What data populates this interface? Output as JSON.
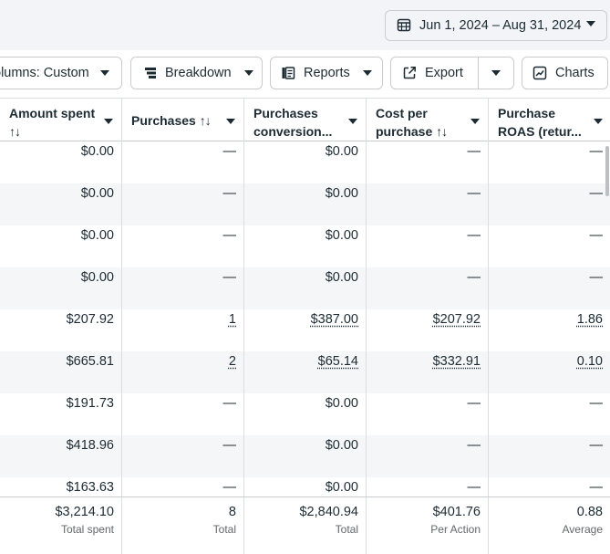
{
  "date_range": {
    "label": "Jun 1, 2024 – Aug 31, 2024"
  },
  "toolbar": {
    "columns_label": "olumns: Custom",
    "breakdown_label": "Breakdown",
    "reports_label": "Reports",
    "export_label": "Export",
    "charts_label": "Charts"
  },
  "table": {
    "columns": [
      {
        "title": "Amount spent",
        "sort": "↑↓"
      },
      {
        "title": "Purchases",
        "sort": "↑↓"
      },
      {
        "title": "Purchases",
        "title2": "conversion..."
      },
      {
        "title": "Cost per",
        "title2": "purchase",
        "sort": "↑↓"
      },
      {
        "title": "Purchase",
        "title2": "ROAS (retur..."
      }
    ],
    "rows": [
      [
        "$0.00",
        "—",
        "$0.00",
        "—",
        "—"
      ],
      [
        "$0.00",
        "—",
        "$0.00",
        "—",
        "—"
      ],
      [
        "$0.00",
        "—",
        "$0.00",
        "—",
        "—"
      ],
      [
        "$0.00",
        "—",
        "$0.00",
        "—",
        "—"
      ],
      [
        "$207.92",
        "1",
        "$387.00",
        "$207.92",
        "1.86"
      ],
      [
        "$665.81",
        "2",
        "$65.14",
        "$332.91",
        "0.10"
      ],
      [
        "$191.73",
        "—",
        "$0.00",
        "—",
        "—"
      ],
      [
        "$418.96",
        "—",
        "$0.00",
        "—",
        "—"
      ],
      [
        "$163.63",
        "—",
        "$0.00",
        "—",
        "—"
      ]
    ],
    "totals": [
      {
        "value": "$3,214.10",
        "sub": "Total spent"
      },
      {
        "value": "8",
        "sub": "Total"
      },
      {
        "value": "$2,840.94",
        "sub": "Total"
      },
      {
        "value": "$401.76",
        "sub": "Per Action"
      },
      {
        "value": "0.88",
        "sub": "Average"
      }
    ]
  },
  "icons": {
    "calendar": "calendar-icon",
    "breakdown": "breakdown-icon",
    "reports": "reports-icon",
    "export": "export-icon",
    "charts": "charts-icon"
  }
}
